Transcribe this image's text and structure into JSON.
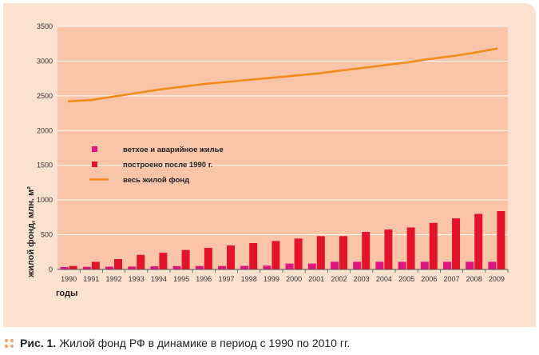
{
  "chart_data": {
    "type": "bar",
    "title": "",
    "xlabel": "годы",
    "ylabel": "жилой фонд, млн. м²",
    "ylim": [
      0,
      3500
    ],
    "yticks": [
      0,
      500,
      1000,
      1500,
      2000,
      2500,
      3000,
      3500
    ],
    "categories": [
      "1990",
      "1991",
      "1992",
      "1993",
      "1994",
      "1995",
      "1996",
      "1997",
      "1998",
      "1999",
      "2000",
      "2001",
      "2002",
      "2003",
      "2004",
      "2005",
      "2006",
      "2007",
      "2008",
      "2009"
    ],
    "series": [
      {
        "name": "ветхое и аварийное жилье",
        "type": "bar",
        "color": "#e0157f",
        "values": [
          35,
          38,
          40,
          42,
          45,
          48,
          50,
          50,
          52,
          55,
          85,
          85,
          110,
          110,
          110,
          110,
          110,
          110,
          110,
          110
        ]
      },
      {
        "name": "построено после 1990 г.",
        "type": "bar",
        "color": "#e2132a",
        "values": [
          50,
          110,
          150,
          210,
          240,
          280,
          310,
          345,
          380,
          410,
          445,
          480,
          480,
          540,
          575,
          605,
          670,
          735,
          800,
          840
        ]
      },
      {
        "name": "весь жилой фонд",
        "type": "line",
        "color": "#f28c1c",
        "values": [
          2420,
          2440,
          2490,
          2540,
          2590,
          2630,
          2670,
          2700,
          2730,
          2760,
          2790,
          2820,
          2860,
          2900,
          2940,
          2980,
          3030,
          3070,
          3120,
          3180
        ]
      }
    ],
    "legend_position": "upper-left"
  },
  "caption": {
    "label": "Рис. 1.",
    "text": "Жилой фонд РФ в динамике в период с 1990 по 2010 гг."
  }
}
